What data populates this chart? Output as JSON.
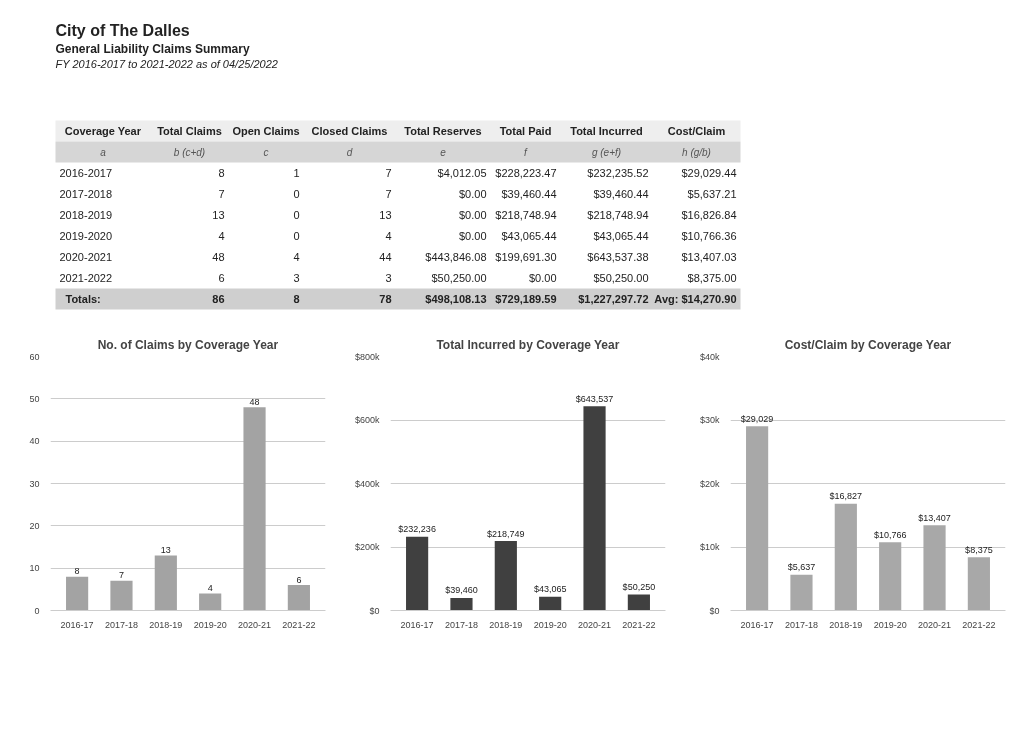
{
  "chart_data": [
    {
      "type": "other",
      "title": "City of The Dalles",
      "subtitle": "General Liability Claims Summary",
      "annotations": [
        "FY 2016-2017 to 2021-2022 as of 04/25/2022"
      ]
    },
    {
      "type": "other",
      "categories": [
        "Coverage Year",
        "Total Claims",
        "Open Claims",
        "Closed Claims",
        "Total Reserves",
        "Total Paid",
        "Total Incurred",
        "Cost/Claim"
      ],
      "annotations": [
        "a",
        "b (c+d)",
        "c",
        "d",
        "e",
        "f",
        "g (e+f)",
        "h (g/b)",
        "2016-2017",
        "8",
        "1",
        "7",
        "$4,012.05",
        "$228,223.47",
        "$232,235.52",
        "$29,029.44",
        "2017-2018",
        "7",
        "0",
        "7",
        "$0.00",
        "$39,460.44",
        "$39,460.44",
        "$5,637.21",
        "2018-2019",
        "13",
        "0",
        "13",
        "$0.00",
        "$218,748.94",
        "$218,748.94",
        "$16,826.84",
        "2019-2020",
        "4",
        "0",
        "4",
        "$0.00",
        "$43,065.44",
        "$43,065.44",
        "$10,766.36",
        "2020-2021",
        "48",
        "4",
        "44",
        "$443,846.08",
        "$199,691.30",
        "$643,537.38",
        "$13,407.03",
        "2021-2022",
        "6",
        "3",
        "3",
        "$50,250.00",
        "$0.00",
        "$50,250.00",
        "$8,375.00",
        "Totals:",
        "86",
        "8",
        "78",
        "$498,108.13",
        "$729,189.59",
        "$1,227,297.72",
        "Avg: $14,270.90"
      ]
    },
    {
      "type": "bar",
      "title": "No. of Claims by Coverage Year",
      "categories": [
        "2016-17",
        "2017-18",
        "2018-19",
        "2019-20",
        "2020-21",
        "2021-22"
      ],
      "values": [
        8,
        7,
        13,
        4,
        48,
        6
      ],
      "color": "#a3a3a3",
      "ylim": [
        0,
        60
      ],
      "yticks": [
        0,
        10,
        20,
        30,
        40,
        50,
        60
      ],
      "grid": "y",
      "data_labels": true
    },
    {
      "type": "bar",
      "title": "Total Incurred by Coverage Year",
      "categories": [
        "2016-17",
        "2017-18",
        "2018-19",
        "2019-20",
        "2020-21",
        "2021-22"
      ],
      "values": [
        232236,
        39460,
        218749,
        43065,
        643537,
        50250
      ],
      "value_labels": [
        "$232,236",
        "$39,460",
        "$218,749",
        "$43,065",
        "$643,537",
        "$50,250"
      ],
      "color": "#404040",
      "ylim": [
        0,
        800000
      ],
      "yticks": [
        {
          "value": 0,
          "label": "$0"
        },
        {
          "value": 200000,
          "label": "$200k"
        },
        {
          "value": 400000,
          "label": "$400k"
        },
        {
          "value": 600000,
          "label": "$600k"
        },
        {
          "value": 800000,
          "label": "$800k"
        }
      ],
      "grid": "y"
    },
    {
      "type": "bar",
      "title": "Cost/Claim by Coverage Year",
      "categories": [
        "2016-17",
        "2017-18",
        "2018-19",
        "2019-20",
        "2020-21",
        "2021-22"
      ],
      "values": [
        29029,
        5637,
        16827,
        10766,
        13407,
        8375
      ],
      "value_labels": [
        "$29,029",
        "$5,637",
        "$16,827",
        "$10,766",
        "$13,407",
        "$8,375"
      ],
      "color": "#a8a8a8",
      "ylim": [
        0,
        40000
      ],
      "yticks": [
        {
          "value": 0,
          "label": "$0"
        },
        {
          "value": 10000,
          "label": "$10k"
        },
        {
          "value": 20000,
          "label": "$20k"
        },
        {
          "value": 30000,
          "label": "$30k"
        },
        {
          "value": 40000,
          "label": "$40k"
        }
      ],
      "grid": "y"
    }
  ]
}
